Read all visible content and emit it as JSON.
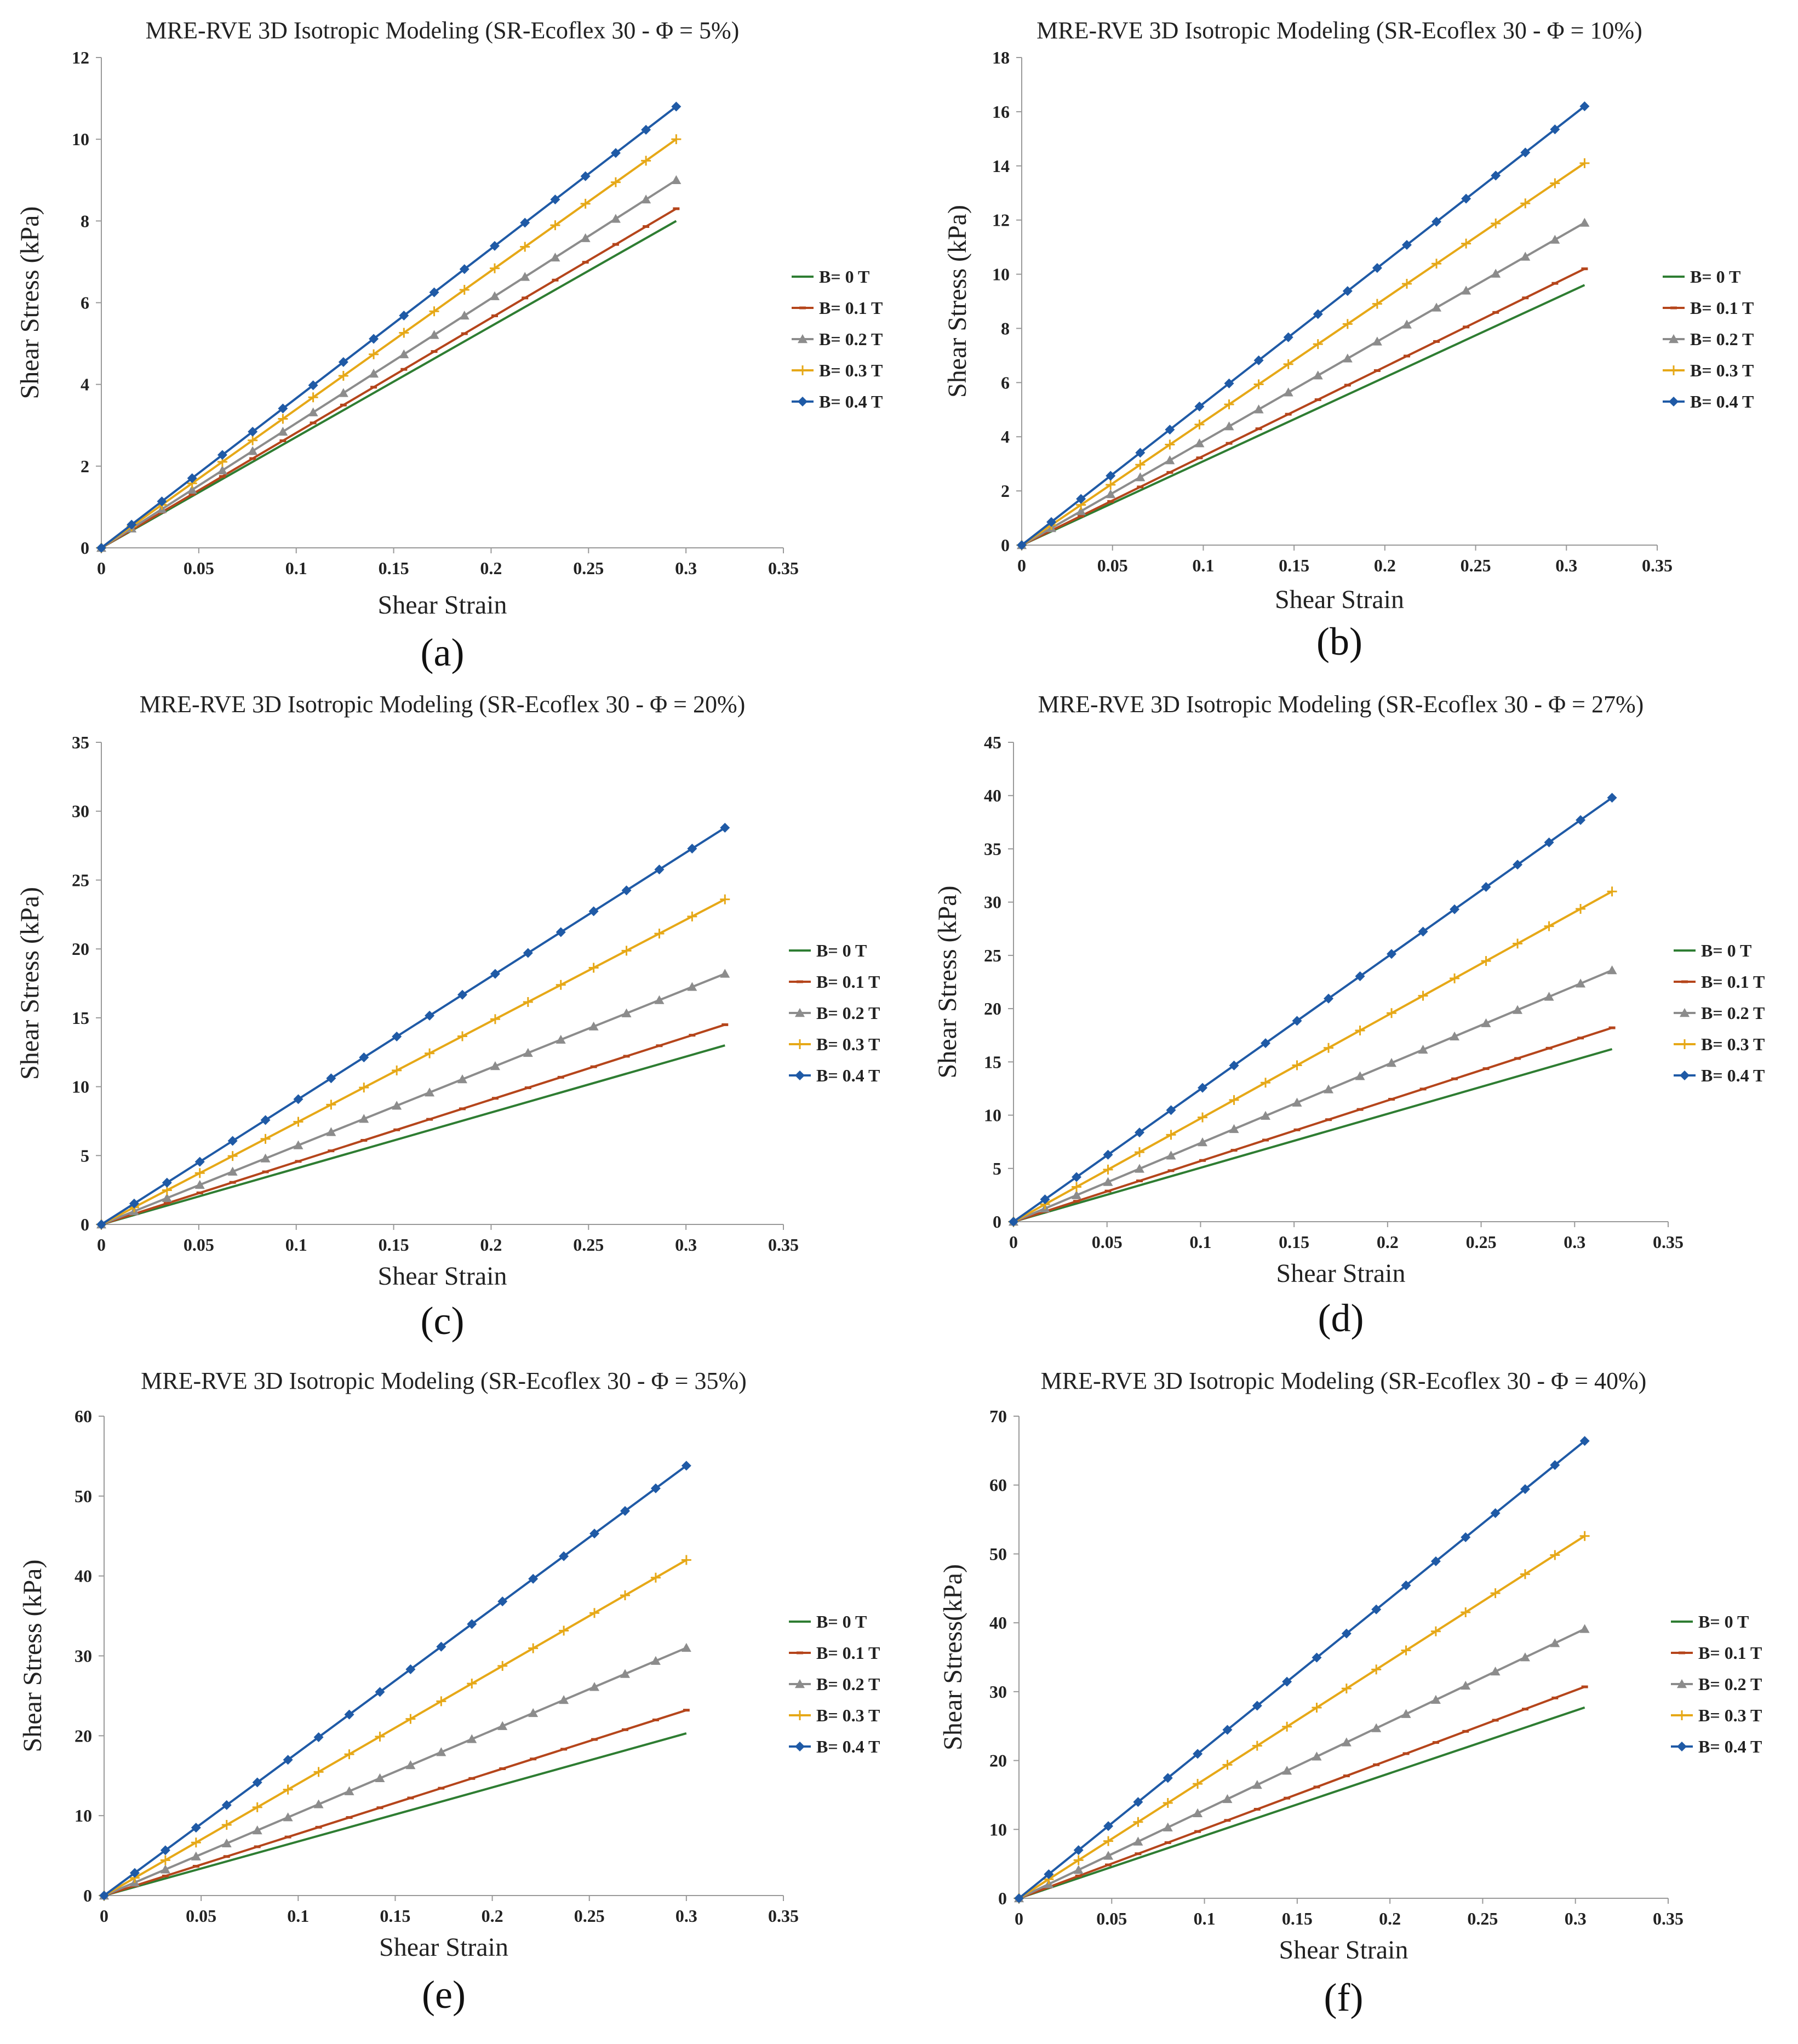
{
  "figure": {
    "panel_labels": [
      "(a)",
      "(b)",
      "(c)",
      "(d)",
      "(e)",
      "(f)"
    ]
  },
  "legend_colors": {
    "B= 0 T": "#2e7d32",
    "B= 0.1 T": "#b5451b",
    "B= 0.2 T": "#8c8c8c",
    "B= 0.3 T": "#e6a817",
    "B= 0.4 T": "#1f5aa6"
  },
  "chart_data": [
    {
      "type": "line",
      "title": "MRE-RVE 3D Isotropic Modeling (SR-Ecoflex 30 - Φ =  5%)",
      "xlabel": "Shear Strain",
      "ylabel": "Shear Stress (kPa)",
      "xlim": [
        0,
        0.35
      ],
      "ylim": [
        0,
        12
      ],
      "xticks": [
        "0",
        "0.05",
        "0.1",
        "0.15",
        "0.2",
        "0.25",
        "0.3",
        "0.35"
      ],
      "yticks": [
        "0",
        "2",
        "4",
        "6",
        "8",
        "10",
        "12"
      ],
      "legend_position": "right",
      "series": [
        {
          "name": "B= 0 T",
          "x": [
            0,
            0.295
          ],
          "y": [
            0,
            8.0
          ]
        },
        {
          "name": "B= 0.1 T",
          "x": [
            0,
            0.295
          ],
          "y": [
            0,
            8.3
          ]
        },
        {
          "name": "B= 0.2 T",
          "x": [
            0,
            0.295
          ],
          "y": [
            0,
            9.0
          ]
        },
        {
          "name": "B= 0.3 T",
          "x": [
            0,
            0.295
          ],
          "y": [
            0,
            10.0
          ]
        },
        {
          "name": "B= 0.4 T",
          "x": [
            0,
            0.295
          ],
          "y": [
            0,
            10.8
          ]
        }
      ]
    },
    {
      "type": "line",
      "title": "MRE-RVE 3D Isotropic Modeling (SR-Ecoflex 30 - Φ =  10%)",
      "xlabel": "Shear Strain",
      "ylabel": "Shear Stress (kPa)",
      "xlim": [
        0,
        0.35
      ],
      "ylim": [
        0,
        18
      ],
      "xticks": [
        "0",
        "0.05",
        "0.1",
        "0.15",
        "0.2",
        "0.25",
        "0.3",
        "0.35"
      ],
      "yticks": [
        "0",
        "2",
        "4",
        "6",
        "8",
        "10",
        "12",
        "14",
        "16",
        "18"
      ],
      "legend_position": "right",
      "series": [
        {
          "name": "B= 0 T",
          "x": [
            0,
            0.31
          ],
          "y": [
            0,
            9.6
          ]
        },
        {
          "name": "B= 0.1 T",
          "x": [
            0,
            0.31
          ],
          "y": [
            0,
            10.2
          ]
        },
        {
          "name": "B= 0.2 T",
          "x": [
            0,
            0.31
          ],
          "y": [
            0,
            11.9
          ]
        },
        {
          "name": "B= 0.3 T",
          "x": [
            0,
            0.31
          ],
          "y": [
            0,
            14.1
          ]
        },
        {
          "name": "B= 0.4 T",
          "x": [
            0,
            0.31
          ],
          "y": [
            0,
            16.2
          ]
        }
      ]
    },
    {
      "type": "line",
      "title": "MRE-RVE 3D Isotropic Modeling (SR-Ecoflex 30 - Φ = 20%)",
      "xlabel": "Shear Strain",
      "ylabel": "Shear Stress (kPa)",
      "xlim": [
        0,
        0.35
      ],
      "ylim": [
        0,
        35
      ],
      "xticks": [
        "0",
        "0.05",
        "0.1",
        "0.15",
        "0.2",
        "0.25",
        "0.3",
        "0.35"
      ],
      "yticks": [
        "0",
        "5",
        "10",
        "15",
        "20",
        "25",
        "30",
        "35"
      ],
      "legend_position": "right",
      "series": [
        {
          "name": "B= 0 T",
          "x": [
            0,
            0.32
          ],
          "y": [
            0,
            13.0
          ]
        },
        {
          "name": "B= 0.1 T",
          "x": [
            0,
            0.32
          ],
          "y": [
            0,
            14.5
          ]
        },
        {
          "name": "B= 0.2 T",
          "x": [
            0,
            0.32
          ],
          "y": [
            0,
            18.2
          ]
        },
        {
          "name": "B= 0.3 T",
          "x": [
            0,
            0.32
          ],
          "y": [
            0,
            23.6
          ]
        },
        {
          "name": "B= 0.4 T",
          "x": [
            0,
            0.32
          ],
          "y": [
            0,
            28.8
          ]
        }
      ]
    },
    {
      "type": "line",
      "title": "MRE-RVE 3D Isotropic Modeling (SR-Ecoflex 30 - Φ = 27%)",
      "xlabel": "Shear Strain",
      "ylabel": "Shear Stress (kPa)",
      "xlim": [
        0,
        0.35
      ],
      "ylim": [
        0,
        45
      ],
      "xticks": [
        "0",
        "0.05",
        "0.1",
        "0.15",
        "0.2",
        "0.25",
        "0.3",
        "0.35"
      ],
      "yticks": [
        "0",
        "5",
        "10",
        "15",
        "20",
        "25",
        "30",
        "35",
        "40",
        "45"
      ],
      "legend_position": "right",
      "series": [
        {
          "name": "B= 0 T",
          "x": [
            0,
            0.32
          ],
          "y": [
            0,
            16.2
          ]
        },
        {
          "name": "B= 0.1 T",
          "x": [
            0,
            0.32
          ],
          "y": [
            0,
            18.2
          ]
        },
        {
          "name": "B= 0.2 T",
          "x": [
            0,
            0.32
          ],
          "y": [
            0,
            23.6
          ]
        },
        {
          "name": "B= 0.3 T",
          "x": [
            0,
            0.32
          ],
          "y": [
            0,
            31.0
          ]
        },
        {
          "name": "B= 0.4 T",
          "x": [
            0,
            0.32
          ],
          "y": [
            0,
            39.8
          ]
        }
      ]
    },
    {
      "type": "line",
      "title": "MRE-RVE 3D Isotropic Modeling (SR-Ecoflex 30 - Φ = 35%)",
      "xlabel": "Shear Strain",
      "ylabel": "Shear Stress (kPa)",
      "xlim": [
        0,
        0.35
      ],
      "ylim": [
        0,
        60
      ],
      "xticks": [
        "0",
        "0.05",
        "0.1",
        "0.15",
        "0.2",
        "0.25",
        "0.3",
        "0.35"
      ],
      "yticks": [
        "0",
        "10",
        "20",
        "30",
        "40",
        "50",
        "60"
      ],
      "legend_position": "right",
      "series": [
        {
          "name": "B= 0 T",
          "x": [
            0,
            0.3
          ],
          "y": [
            0,
            20.3
          ]
        },
        {
          "name": "B= 0.1 T",
          "x": [
            0,
            0.3
          ],
          "y": [
            0,
            23.2
          ]
        },
        {
          "name": "B= 0.2 T",
          "x": [
            0,
            0.3
          ],
          "y": [
            0,
            31.0
          ]
        },
        {
          "name": "B= 0.3 T",
          "x": [
            0,
            0.3
          ],
          "y": [
            0,
            42.0
          ]
        },
        {
          "name": "B= 0.4 T",
          "x": [
            0,
            0.3
          ],
          "y": [
            0,
            53.8
          ]
        }
      ]
    },
    {
      "type": "line",
      "title": "MRE-RVE 3D Isotropic Modeling (SR-Ecoflex 30 - Φ = 40%)",
      "xlabel": "Shear Strain",
      "ylabel": "Shear Stress(kPa)",
      "xlim": [
        0,
        0.35
      ],
      "ylim": [
        0,
        70
      ],
      "xticks": [
        "0",
        "0.05",
        "0.1",
        "0.15",
        "0.2",
        "0.25",
        "0.3",
        "0.35"
      ],
      "yticks": [
        "0",
        "10",
        "20",
        "30",
        "40",
        "50",
        "60",
        "70"
      ],
      "legend_position": "right",
      "series": [
        {
          "name": "B= 0 T",
          "x": [
            0,
            0.305
          ],
          "y": [
            0,
            27.7
          ]
        },
        {
          "name": "B= 0.1 T",
          "x": [
            0,
            0.305
          ],
          "y": [
            0,
            30.7
          ]
        },
        {
          "name": "B= 0.2 T",
          "x": [
            0,
            0.305
          ],
          "y": [
            0,
            39.1
          ]
        },
        {
          "name": "B= 0.3 T",
          "x": [
            0,
            0.305
          ],
          "y": [
            0,
            52.6
          ]
        },
        {
          "name": "B= 0.4 T",
          "x": [
            0,
            0.305
          ],
          "y": [
            0,
            66.4
          ]
        }
      ]
    }
  ]
}
